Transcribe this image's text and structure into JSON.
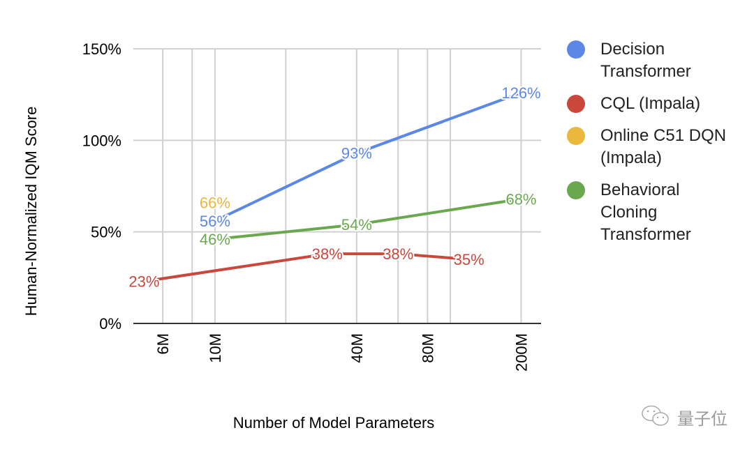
{
  "chart_data": {
    "type": "line",
    "xlabel": "Number of Model Parameters",
    "ylabel": "Human-Normalized IQM Score",
    "x_scale": "log",
    "x_unit": "M",
    "xlim": [
      4.5,
      243
    ],
    "ylim": [
      0,
      150
    ],
    "x_ticks": [
      {
        "value": 6,
        "label": "6M"
      },
      {
        "value": 10,
        "label": "10M"
      },
      {
        "value": 40,
        "label": "40M"
      },
      {
        "value": 80,
        "label": "80M"
      },
      {
        "value": 200,
        "label": "200M"
      }
    ],
    "x_gridlines": [
      6,
      8,
      10,
      20,
      40,
      60,
      80,
      100,
      200
    ],
    "y_ticks": [
      {
        "value": 0,
        "label": "0%"
      },
      {
        "value": 50,
        "label": "50%"
      },
      {
        "value": 100,
        "label": "100%"
      },
      {
        "value": 150,
        "label": "150%"
      }
    ],
    "grid": true,
    "legend_position": "right",
    "series": [
      {
        "name": "Decision Transformer",
        "color": "#5b87e8",
        "points": [
          {
            "x": 10,
            "y": 56,
            "label": "56%"
          },
          {
            "x": 40,
            "y": 93,
            "label": "93%"
          },
          {
            "x": 200,
            "y": 126,
            "label": "126%"
          }
        ]
      },
      {
        "name": "CQL (Impala)",
        "color": "#c9473b",
        "points": [
          {
            "x": 5,
            "y": 23,
            "label": "23%"
          },
          {
            "x": 30,
            "y": 38,
            "label": "38%"
          },
          {
            "x": 60,
            "y": 38,
            "label": "38%"
          },
          {
            "x": 120,
            "y": 35,
            "label": "35%"
          }
        ]
      },
      {
        "name": "Online C51 DQN (Impala)",
        "color": "#e9b83c",
        "points": [
          {
            "x": 10,
            "y": 66,
            "label": "66%"
          }
        ]
      },
      {
        "name": "Behavioral Cloning Transformer",
        "color": "#6aa84f",
        "points": [
          {
            "x": 10,
            "y": 46,
            "label": "46%"
          },
          {
            "x": 40,
            "y": 54,
            "label": "54%"
          },
          {
            "x": 200,
            "y": 68,
            "label": "68%"
          }
        ]
      }
    ]
  },
  "legend": [
    {
      "label": "Decision Transformer",
      "color": "#5b87e8"
    },
    {
      "label": "CQL (Impala)",
      "color": "#c9473b"
    },
    {
      "label": "Online C51 DQN (Impala)",
      "color": "#e9b83c"
    },
    {
      "label": "Behavioral Cloning Transformer",
      "color": "#6aa84f"
    }
  ],
  "watermark": {
    "text": "量子位",
    "icon": "wechat-icon"
  }
}
